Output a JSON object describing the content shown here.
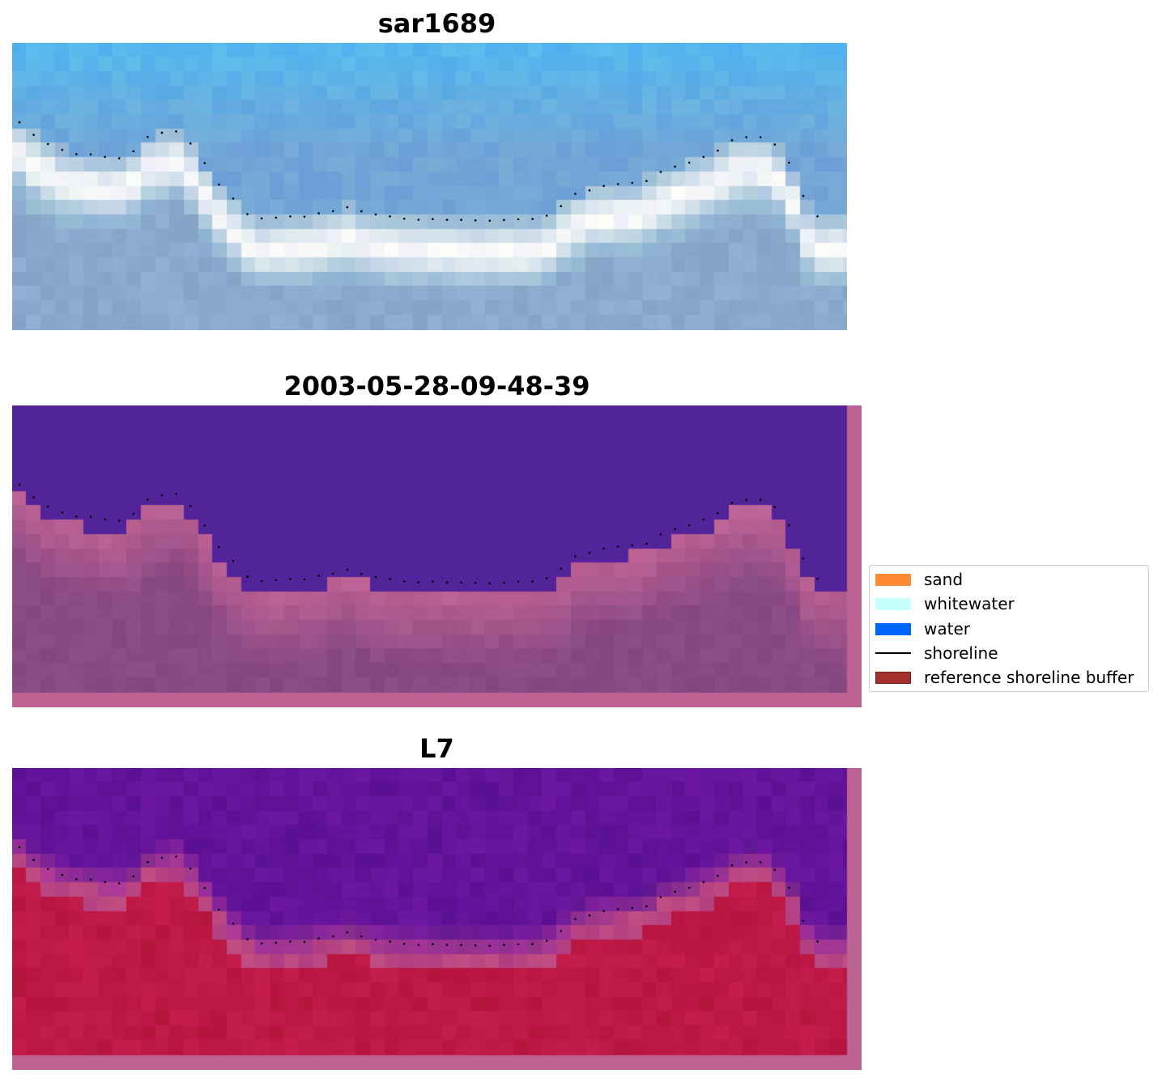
{
  "panels": [
    {
      "title": "sar1689",
      "kind": "rgb"
    },
    {
      "title": "2003-05-28-09-48-39",
      "kind": "classified"
    },
    {
      "title": "L7",
      "kind": "mndwi"
    }
  ],
  "legend": {
    "items": [
      {
        "label": "sand",
        "color": "#ff8c32",
        "type": "patch"
      },
      {
        "label": "whitewater",
        "color": "#c8ffff",
        "type": "patch"
      },
      {
        "label": "water",
        "color": "#0064ff",
        "type": "patch"
      },
      {
        "label": "shoreline",
        "color": "#000000",
        "type": "line"
      },
      {
        "label": "reference shoreline buffer",
        "color": "#a3302f",
        "type": "patch"
      }
    ]
  },
  "colors": {
    "buffer_overlay": "#bd6394",
    "water_class": "#532399",
    "land_class": "#8a4a85",
    "mndwi_water": "#6a1a9c",
    "mndwi_land": "#c01c48"
  }
}
